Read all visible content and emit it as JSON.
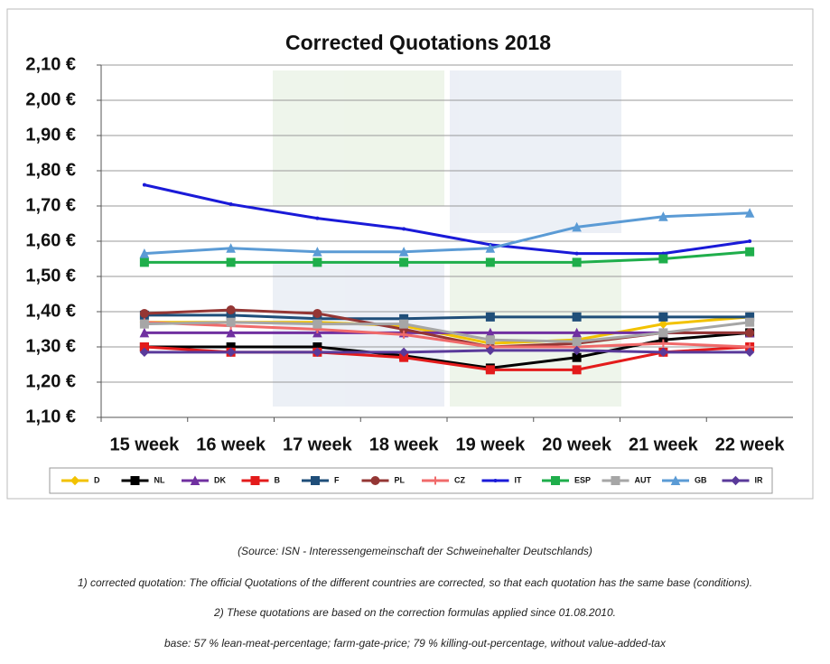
{
  "chart_data": {
    "type": "line",
    "title": "Corrected Quotations 2018",
    "categories": [
      "15 week",
      "16 week",
      "17 week",
      "18 week",
      "19 week",
      "20 week",
      "21 week",
      "22 week"
    ],
    "ylim": [
      1.1,
      2.1
    ],
    "yticks": [
      {
        "value": 1.1,
        "label": "1,10 €"
      },
      {
        "value": 1.2,
        "label": "1,20 €"
      },
      {
        "value": 1.3,
        "label": "1,30 €"
      },
      {
        "value": 1.4,
        "label": "1,40 €"
      },
      {
        "value": 1.5,
        "label": "1,50 €"
      },
      {
        "value": 1.6,
        "label": "1,60 €"
      },
      {
        "value": 1.7,
        "label": "1,70 €"
      },
      {
        "value": 1.8,
        "label": "1,80 €"
      },
      {
        "value": 1.9,
        "label": "1,90 €"
      },
      {
        "value": 2.0,
        "label": "2,00 €"
      },
      {
        "value": 2.1,
        "label": "2,10 €"
      }
    ],
    "grid": true,
    "legend": "bottom",
    "series": [
      {
        "name": "D",
        "color": "#f2c200",
        "marker": "diamond",
        "values": [
          1.37,
          1.37,
          1.37,
          1.36,
          1.31,
          1.32,
          1.365,
          1.385
        ]
      },
      {
        "name": "NL",
        "color": "#000000",
        "marker": "square",
        "values": [
          1.3,
          1.3,
          1.3,
          1.275,
          1.24,
          1.27,
          1.32,
          1.34
        ]
      },
      {
        "name": "DK",
        "color": "#7030a0",
        "marker": "triangle",
        "values": [
          1.34,
          1.34,
          1.34,
          1.34,
          1.34,
          1.34,
          1.34,
          1.34
        ]
      },
      {
        "name": "B",
        "color": "#e31b1b",
        "marker": "square",
        "values": [
          1.3,
          1.285,
          1.285,
          1.27,
          1.235,
          1.235,
          1.285,
          1.3
        ]
      },
      {
        "name": "F",
        "color": "#1f4e79",
        "marker": "square",
        "values": [
          1.39,
          1.39,
          1.38,
          1.38,
          1.385,
          1.385,
          1.385,
          1.385
        ]
      },
      {
        "name": "PL",
        "color": "#943634",
        "marker": "circle",
        "values": [
          1.395,
          1.405,
          1.395,
          1.35,
          1.3,
          1.31,
          1.34,
          1.34
        ]
      },
      {
        "name": "CZ",
        "color": "#f06a6a",
        "marker": "cross",
        "values": [
          1.37,
          1.36,
          1.35,
          1.335,
          1.3,
          1.3,
          1.31,
          1.3
        ]
      },
      {
        "name": "IT",
        "color": "#1a1ad8",
        "marker": "none",
        "values": [
          1.76,
          1.705,
          1.665,
          1.635,
          1.59,
          1.565,
          1.565,
          1.6
        ]
      },
      {
        "name": "ESP",
        "color": "#1fae4b",
        "marker": "square",
        "values": [
          1.54,
          1.54,
          1.54,
          1.54,
          1.54,
          1.54,
          1.55,
          1.57
        ]
      },
      {
        "name": "AUT",
        "color": "#a6a6a6",
        "marker": "square",
        "values": [
          1.365,
          1.37,
          1.365,
          1.365,
          1.32,
          1.315,
          1.34,
          1.37
        ]
      },
      {
        "name": "GB",
        "color": "#5b9bd5",
        "marker": "triangle",
        "values": [
          1.565,
          1.58,
          1.57,
          1.57,
          1.58,
          1.64,
          1.67,
          1.68
        ]
      },
      {
        "name": "IR",
        "color": "#5a3a9a",
        "marker": "diamond",
        "values": [
          1.285,
          1.285,
          1.285,
          1.285,
          1.29,
          1.29,
          1.285,
          1.285
        ]
      }
    ]
  },
  "notes": [
    "(Source: ISN - Interessengemeinschaft der Schweinehalter Deutschlands)",
    "1) corrected quotation: The official Quotations of the different countries are corrected, so that each quotation has the same base (conditions).",
    "2) These quotations are based on the correction formulas applied since 01.08.2010.",
    "base: 57 % lean-meat-percentage; farm-gate-price; 79 % killing-out-percentage, without value-added-tax"
  ]
}
